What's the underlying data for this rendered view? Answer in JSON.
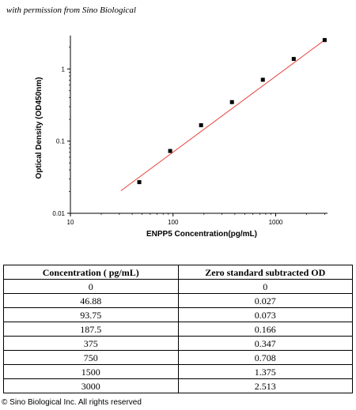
{
  "header": {
    "permission_text": "with permission from Sino Biological"
  },
  "chart_data": {
    "type": "scatter",
    "xlabel": "ENPP5  Concentration(pg/mL)",
    "ylabel": "Optical Density (OD450nm)",
    "x_scale": "log",
    "y_scale": "log",
    "xlim": [
      10,
      3200
    ],
    "ylim": [
      0.01,
      2.9
    ],
    "x_ticks": [
      10,
      100,
      1000
    ],
    "x_tick_labels": [
      "10",
      "100",
      "1000"
    ],
    "y_ticks": [
      0.01,
      0.1,
      1
    ],
    "y_tick_labels": [
      "0.01",
      "0.1",
      "1"
    ],
    "grid": false,
    "colors": {
      "points": "#000000",
      "fit_line": "#e8403a",
      "axis": "#000000"
    },
    "points": [
      {
        "x": 46.88,
        "y": 0.027
      },
      {
        "x": 93.75,
        "y": 0.073
      },
      {
        "x": 187.5,
        "y": 0.166
      },
      {
        "x": 375,
        "y": 0.347
      },
      {
        "x": 750,
        "y": 0.708
      },
      {
        "x": 1500,
        "y": 1.375
      },
      {
        "x": 3000,
        "y": 2.513
      }
    ],
    "fit_line": [
      {
        "x": 31,
        "y": 0.0205
      },
      {
        "x": 3000,
        "y": 2.513
      }
    ]
  },
  "table": {
    "headers": [
      "Concentration ( pg/mL)",
      "Zero standard subtracted OD"
    ],
    "rows": [
      [
        "0",
        "0"
      ],
      [
        "46.88",
        "0.027"
      ],
      [
        "93.75",
        "0.073"
      ],
      [
        "187.5",
        "0.166"
      ],
      [
        "375",
        "0.347"
      ],
      [
        "750",
        "0.708"
      ],
      [
        "1500",
        "1.375"
      ],
      [
        "3000",
        "2.513"
      ]
    ]
  },
  "footer": {
    "copyright": "© Sino Biological Inc. All rights reserved"
  }
}
